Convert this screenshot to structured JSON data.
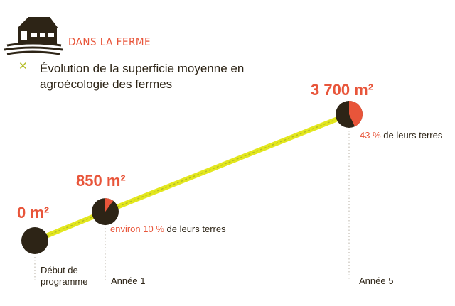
{
  "section_title": "DANS LA FERME",
  "chart_data": {
    "type": "line",
    "title": "Évolution de la superficie moyenne en agroécologie des fermes",
    "categories": [
      "Début de programme",
      "Année 1",
      "Année 5"
    ],
    "category_label_lines": [
      [
        "Début de",
        "programme"
      ],
      [
        "Année 1"
      ],
      [
        "Année 5"
      ]
    ],
    "values": [
      0,
      850,
      3700
    ],
    "unit": "m²",
    "value_labels": [
      "0 m²",
      "850 m²",
      "3 700 m²"
    ],
    "share_percent": [
      null,
      10,
      43
    ],
    "share_notes": [
      null,
      {
        "prefix": "environ ",
        "pct": "10 %",
        "suffix": " de leurs terres"
      },
      {
        "prefix": "",
        "pct": "43 %",
        "suffix": " de leurs terres"
      }
    ],
    "colors": {
      "accent": "#e8553a",
      "dark": "#2d2416",
      "line": "#e3e71e",
      "line_edge": "#b5bd26",
      "guide": "#b8b2a6"
    }
  },
  "icons": {
    "farm": "farm-house-icon",
    "bullet": "x-bullet-icon"
  }
}
